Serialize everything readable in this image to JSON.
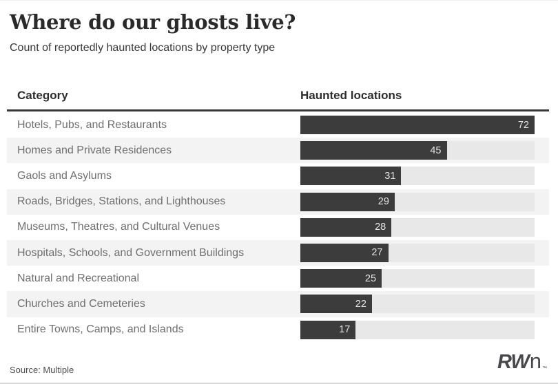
{
  "header": {
    "title": "Where do our ghosts live?",
    "subtitle": "Count of reportedly haunted locations by property type"
  },
  "table": {
    "columns": [
      "Category",
      "Haunted locations"
    ]
  },
  "chart_data": {
    "type": "bar",
    "orientation": "horizontal",
    "title": "Where do our ghosts live?",
    "subtitle": "Count of reportedly haunted locations by property type",
    "categories": [
      "Hotels, Pubs, and Restaurants",
      "Homes and Private Residences",
      "Gaols and Asylums",
      "Roads, Bridges, Stations, and Lighthouses",
      "Museums, Theatres, and Cultural Venues",
      "Hospitals, Schools, and Government Buildings",
      "Natural and Recreational",
      "Churches and Cemeteries",
      "Entire Towns, Camps, and Islands"
    ],
    "values": [
      72,
      45,
      31,
      29,
      28,
      27,
      25,
      22,
      17
    ],
    "value_axis_max": 72,
    "value_labels_inside_bars": true,
    "legend": "none",
    "grid": "off",
    "colors": {
      "bar": "#3c3c3c",
      "track": "#e8e8e8",
      "row_stripe": "#f3f3f3",
      "value_label": "#e3e3e3"
    }
  },
  "footer": {
    "source": "Source: Multiple",
    "logo": {
      "bold": "RW",
      "light": "n",
      "tm": "™"
    }
  }
}
